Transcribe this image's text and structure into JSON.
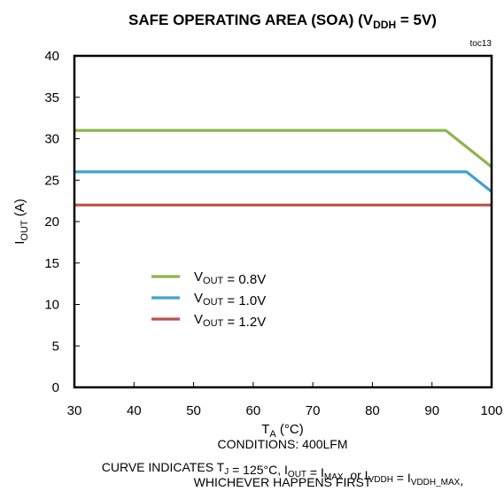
{
  "chart_data": {
    "type": "line",
    "title": {
      "main": "SAFE OPERATING AREA (SOA) (V",
      "sub": "DDH",
      "tail": " = 5V)"
    },
    "tag": "toc13",
    "xlabel": {
      "main": "T",
      "sub": "A",
      "tail": " (°C)"
    },
    "ylabel": {
      "main": "I",
      "sub": "OUT",
      "tail": " (A)"
    },
    "xlim": [
      30,
      100
    ],
    "ylim": [
      0,
      40
    ],
    "xticks": [
      "30",
      "40",
      "50",
      "60",
      "70",
      "80",
      "90",
      "100"
    ],
    "yticks": [
      "0",
      "5",
      "10",
      "15",
      "20",
      "25",
      "30",
      "35",
      "40"
    ],
    "grid": false,
    "legend_position": "lower-left",
    "series": [
      {
        "name": {
          "main": "V",
          "sub": "OUT",
          "tail": " = 0.8V"
        },
        "color": "#8db54b",
        "x": [
          30,
          92.3,
          100
        ],
        "y": [
          31,
          31,
          26.6
        ]
      },
      {
        "name": {
          "main": "V",
          "sub": "OUT",
          "tail": " = 1.0V"
        },
        "color": "#3ea3c9",
        "x": [
          30,
          95.8,
          100
        ],
        "y": [
          26,
          26,
          23.6
        ]
      },
      {
        "name": {
          "main": "V",
          "sub": "OUT",
          "tail": " = 1.2V"
        },
        "color": "#c0504d",
        "x": [
          30,
          100
        ],
        "y": [
          22,
          22
        ]
      }
    ],
    "conditions": "CONDITIONS:  400LFM",
    "footnote": [
      [
        {
          "t": "CURVE INDICATES  T"
        },
        {
          "t": "J",
          "s": true
        },
        {
          "t": " = 125°C,  I"
        },
        {
          "t": "OUT",
          "s": true
        },
        {
          "t": " = I"
        },
        {
          "t": "MAX",
          "s": true
        },
        {
          "t": ",  or I"
        },
        {
          "t": "VDDH",
          "s": true
        },
        {
          "t": " = I"
        },
        {
          "t": "VDDH_MAX",
          "s": true
        },
        {
          "t": ","
        }
      ],
      [
        {
          "t": "WHICHEVER HAPPENS FIRST"
        }
      ]
    ]
  }
}
